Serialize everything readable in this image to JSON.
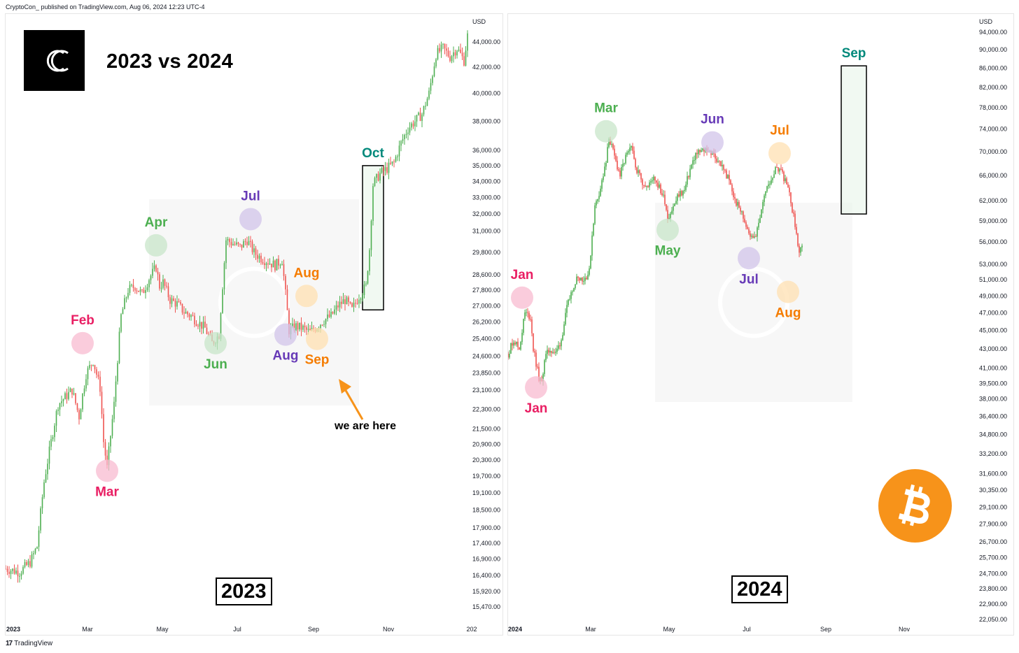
{
  "header": {
    "published": "CryptoCon_ published on TradingView.com, Aug 06, 2024 12:23 UTC-4"
  },
  "footer": {
    "brand": "TradingView",
    "brand_mark": "17"
  },
  "title": "2023 vs 2024",
  "colors": {
    "up": "#26a69a",
    "up_alt": "#4caf50",
    "down": "#ef5350",
    "pink": "#f48fb1",
    "green_circle": "#a5d6a7",
    "purple_circle": "#b39ddb",
    "orange_circle": "#ffcc80",
    "btc_orange": "#f7931a"
  },
  "icons": {
    "logo": "cryptocon-logo-icon",
    "bitcoin": "bitcoin-icon",
    "watermark": "tradingview-watermark-icon"
  },
  "chart_data": [
    {
      "type": "candlestick",
      "year_label": "2023",
      "currency": "USD",
      "x_ticks": [
        "2023",
        "Mar",
        "May",
        "Jul",
        "Sep",
        "Nov",
        "202"
      ],
      "y_ticks": [
        "44,000.00",
        "42,000.00",
        "40,000.00",
        "38,000.00",
        "36,000.00",
        "35,000.00",
        "34,000.00",
        "33,000.00",
        "32,000.00",
        "31,000.00",
        "29,800.00",
        "28,600.00",
        "27,800.00",
        "27,000.00",
        "26,200.00",
        "25,400.00",
        "24,600.00",
        "23,850.00",
        "23,100.00",
        "22,300.00",
        "21,500.00",
        "20,900.00",
        "20,300.00",
        "19,700.00",
        "19,100.00",
        "18,500.00",
        "17,900.00",
        "17,400.00",
        "16,900.00",
        "16,400.00",
        "15,920.00",
        "15,470.00"
      ],
      "y_values": [
        44000,
        42000,
        40000,
        38000,
        36000,
        35000,
        34000,
        33000,
        32000,
        31000,
        29800,
        28600,
        27800,
        27000,
        26200,
        25400,
        24600,
        23850,
        23100,
        22300,
        21500,
        20900,
        20300,
        19700,
        19100,
        18500,
        17900,
        17400,
        16900,
        16400,
        15920,
        15470
      ],
      "price_path": [
        [
          0,
          16600
        ],
        [
          8,
          16500
        ],
        [
          14,
          16800
        ],
        [
          18,
          17300
        ],
        [
          22,
          19500
        ],
        [
          26,
          21000
        ],
        [
          30,
          22500
        ],
        [
          34,
          22800
        ],
        [
          38,
          23100
        ],
        [
          42,
          22000
        ],
        [
          46,
          23800
        ],
        [
          50,
          24400
        ],
        [
          54,
          23200
        ],
        [
          56,
          21000
        ],
        [
          58,
          20000
        ],
        [
          62,
          22500
        ],
        [
          66,
          26500
        ],
        [
          70,
          27800
        ],
        [
          74,
          28000
        ],
        [
          78,
          27600
        ],
        [
          82,
          28400
        ],
        [
          86,
          29000
        ],
        [
          88,
          28000
        ],
        [
          90,
          28200
        ],
        [
          94,
          27300
        ],
        [
          98,
          27100
        ],
        [
          102,
          26700
        ],
        [
          106,
          26500
        ],
        [
          110,
          26200
        ],
        [
          114,
          25900
        ],
        [
          118,
          25200
        ],
        [
          122,
          25600
        ],
        [
          126,
          30500
        ],
        [
          130,
          30300
        ],
        [
          134,
          30100
        ],
        [
          138,
          30500
        ],
        [
          142,
          29800
        ],
        [
          146,
          29500
        ],
        [
          150,
          29300
        ],
        [
          154,
          29100
        ],
        [
          158,
          29400
        ],
        [
          162,
          25800
        ],
        [
          166,
          26000
        ],
        [
          170,
          25900
        ],
        [
          174,
          25700
        ],
        [
          178,
          26000
        ],
        [
          182,
          26300
        ],
        [
          186,
          26500
        ],
        [
          190,
          27000
        ],
        [
          194,
          27300
        ],
        [
          198,
          26800
        ],
        [
          202,
          27500
        ],
        [
          206,
          28000
        ],
        [
          208,
          30000
        ],
        [
          210,
          33800
        ],
        [
          214,
          34500
        ],
        [
          218,
          34800
        ],
        [
          222,
          35200
        ],
        [
          226,
          36500
        ],
        [
          230,
          37500
        ],
        [
          234,
          38000
        ],
        [
          238,
          38500
        ],
        [
          242,
          40000
        ],
        [
          246,
          43000
        ],
        [
          250,
          43500
        ],
        [
          254,
          42800
        ],
        [
          258,
          43500
        ],
        [
          262,
          42500
        ],
        [
          264,
          44500
        ]
      ],
      "annotations": [
        {
          "label": "Feb",
          "price": 25200,
          "day": 44,
          "circle": "pink",
          "label_pos": "above",
          "color": "#e91e63"
        },
        {
          "label": "Mar",
          "price": 19900,
          "day": 58,
          "circle": "pink",
          "label_pos": "below",
          "color": "#e91e63"
        },
        {
          "label": "Apr",
          "price": 30200,
          "day": 86,
          "circle": "green",
          "label_pos": "above",
          "color": "#4caf50"
        },
        {
          "label": "Jun",
          "price": 25200,
          "day": 120,
          "circle": "green",
          "label_pos": "below",
          "color": "#4caf50"
        },
        {
          "label": "Jul",
          "price": 31700,
          "day": 140,
          "circle": "purple",
          "label_pos": "above",
          "color": "#673ab7"
        },
        {
          "label": "Aug",
          "price": 27500,
          "day": 172,
          "circle": "orange",
          "label_pos": "above",
          "color": "#f57c00"
        },
        {
          "label": "Aug",
          "price": 25600,
          "day": 160,
          "circle": "purple",
          "label_pos": "below",
          "color": "#673ab7"
        },
        {
          "label": "Sep",
          "price": 25400,
          "day": 178,
          "circle": "orange",
          "label_pos": "below",
          "color": "#f57c00"
        }
      ],
      "highlight_box": {
        "label": "Oct",
        "day_start": 204,
        "day_end": 216,
        "price_low": 26800,
        "price_high": 35000,
        "color": "#00897b"
      },
      "callout": "we are here"
    },
    {
      "type": "candlestick",
      "year_label": "2024",
      "currency": "USD",
      "x_ticks": [
        "2024",
        "Mar",
        "May",
        "Jul",
        "Sep",
        "Nov"
      ],
      "y_ticks": [
        "94,000.00",
        "90,000.00",
        "86,000.00",
        "82,000.00",
        "78,000.00",
        "74,000.00",
        "70,000.00",
        "66,000.00",
        "62,000.00",
        "59,000.00",
        "56,000.00",
        "53,000.00",
        "51,000.00",
        "49,000.00",
        "47,000.00",
        "45,000.00",
        "43,000.00",
        "41,000.00",
        "39,500.00",
        "38,000.00",
        "36,400.00",
        "34,800.00",
        "33,200.00",
        "31,600.00",
        "30,350.00",
        "29,100.00",
        "27,900.00",
        "26,700.00",
        "25,700.00",
        "24,700.00",
        "23,800.00",
        "22,900.00",
        "22,050.00"
      ],
      "y_values": [
        94000,
        90000,
        86000,
        82000,
        78000,
        74000,
        70000,
        66000,
        62000,
        59000,
        56000,
        53000,
        51000,
        49000,
        47000,
        45000,
        43000,
        41000,
        39500,
        38000,
        36400,
        34800,
        33200,
        31600,
        30350,
        29100,
        27900,
        26700,
        25700,
        24700,
        23800,
        22900,
        22050
      ],
      "price_path": [
        [
          0,
          42500
        ],
        [
          4,
          44000
        ],
        [
          8,
          43000
        ],
        [
          12,
          47000
        ],
        [
          16,
          46500
        ],
        [
          18,
          43000
        ],
        [
          20,
          41500
        ],
        [
          22,
          40000
        ],
        [
          24,
          39500
        ],
        [
          26,
          42000
        ],
        [
          30,
          43000
        ],
        [
          34,
          42500
        ],
        [
          38,
          44000
        ],
        [
          42,
          47500
        ],
        [
          46,
          50000
        ],
        [
          50,
          51500
        ],
        [
          54,
          51000
        ],
        [
          58,
          52000
        ],
        [
          60,
          57000
        ],
        [
          62,
          61000
        ],
        [
          66,
          64000
        ],
        [
          70,
          68000
        ],
        [
          72,
          72500
        ],
        [
          76,
          69000
        ],
        [
          80,
          66000
        ],
        [
          84,
          69000
        ],
        [
          88,
          70500
        ],
        [
          92,
          67000
        ],
        [
          96,
          65000
        ],
        [
          100,
          64000
        ],
        [
          104,
          66000
        ],
        [
          108,
          64000
        ],
        [
          112,
          62000
        ],
        [
          114,
          59500
        ],
        [
          118,
          61000
        ],
        [
          122,
          63000
        ],
        [
          126,
          63500
        ],
        [
          130,
          67000
        ],
        [
          134,
          69500
        ],
        [
          138,
          70000
        ],
        [
          142,
          70500
        ],
        [
          146,
          69500
        ],
        [
          150,
          68500
        ],
        [
          154,
          67000
        ],
        [
          158,
          65000
        ],
        [
          162,
          62000
        ],
        [
          166,
          60500
        ],
        [
          170,
          58500
        ],
        [
          174,
          56500
        ],
        [
          178,
          57500
        ],
        [
          182,
          62000
        ],
        [
          186,
          64500
        ],
        [
          190,
          66500
        ],
        [
          194,
          67500
        ],
        [
          198,
          65000
        ],
        [
          202,
          62000
        ],
        [
          206,
          57000
        ],
        [
          208,
          54500
        ],
        [
          210,
          55000
        ]
      ],
      "annotations": [
        {
          "label": "Jan",
          "price": 48800,
          "day": 10,
          "circle": "pink",
          "label_pos": "above",
          "color": "#e91e63"
        },
        {
          "label": "Jan",
          "price": 39100,
          "day": 20,
          "circle": "pink",
          "label_pos": "below",
          "color": "#e91e63"
        },
        {
          "label": "Mar",
          "price": 73600,
          "day": 70,
          "circle": "green",
          "label_pos": "above",
          "color": "#4caf50"
        },
        {
          "label": "May",
          "price": 57700,
          "day": 114,
          "circle": "green",
          "label_pos": "below",
          "color": "#4caf50"
        },
        {
          "label": "Jun",
          "price": 71600,
          "day": 146,
          "circle": "purple",
          "label_pos": "above",
          "color": "#673ab7"
        },
        {
          "label": "Jul",
          "price": 53800,
          "day": 172,
          "circle": "purple",
          "label_pos": "below",
          "color": "#673ab7"
        },
        {
          "label": "Jul",
          "price": 69700,
          "day": 194,
          "circle": "orange",
          "label_pos": "above",
          "color": "#f57c00"
        },
        {
          "label": "Aug",
          "price": 49500,
          "day": 200,
          "circle": "orange",
          "label_pos": "below",
          "color": "#f57c00"
        }
      ],
      "highlight_box": {
        "label": "Sep",
        "day_start": 238,
        "day_end": 256,
        "price_low": 60000,
        "price_high": 86500,
        "color": "#00897b"
      }
    }
  ]
}
